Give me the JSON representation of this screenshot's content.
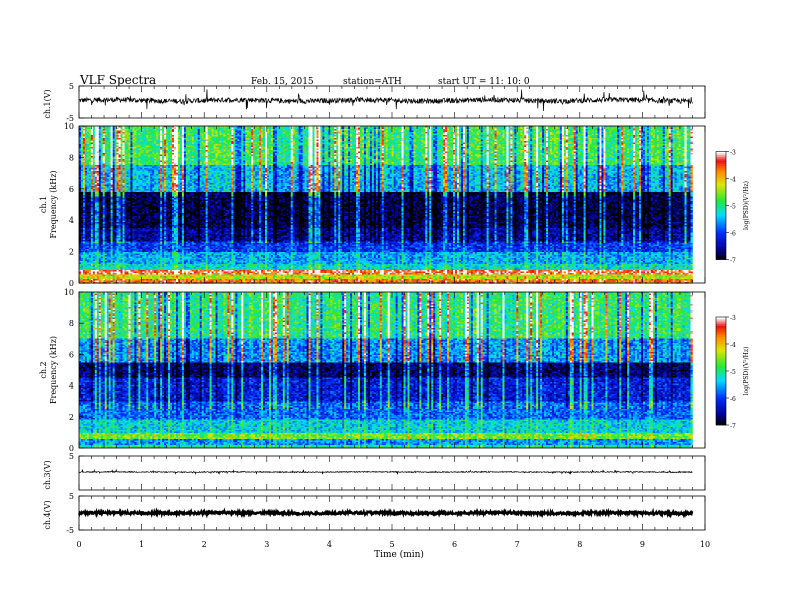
{
  "header": {
    "title": "VLF  Spectra",
    "date": "Feb. 15, 2015",
    "station": "station=ATH",
    "start": "start  UT  =   11: 10: 0"
  },
  "chart_data": [
    {
      "type": "line",
      "ylabel": "ch.1(V)",
      "ylim": [
        -5,
        5
      ],
      "y_ticks": [
        "5",
        "-5"
      ],
      "waveform": {
        "baseline": 0.5,
        "amplitude": 0.8,
        "spike_amplitude": 3
      }
    },
    {
      "type": "heatmap",
      "ylabel_channel": "ch.1",
      "ylabel": "Frequency  (kHz)",
      "ylim": [
        0,
        10
      ],
      "y_ticks": [
        "0",
        "2",
        "4",
        "6",
        "8",
        "10"
      ],
      "colorbar": {
        "label": "log(PSD)(V²/Hz)",
        "range": [
          -7,
          -3
        ],
        "ticks": [
          "-3",
          "-4",
          "-5",
          "-6",
          "-7"
        ]
      },
      "bands_khz": [
        {
          "from": 0.0,
          "to": 0.3,
          "level": -3.6
        },
        {
          "from": 0.3,
          "to": 0.5,
          "level": -4.3
        },
        {
          "from": 0.5,
          "to": 0.8,
          "level": -3.3
        },
        {
          "from": 0.8,
          "to": 1.2,
          "level": -5.2
        },
        {
          "from": 1.2,
          "to": 2.0,
          "level": -5.5
        },
        {
          "from": 2.0,
          "to": 2.6,
          "level": -6.0
        },
        {
          "from": 2.6,
          "to": 3.5,
          "level": -6.5
        },
        {
          "from": 3.5,
          "to": 5.8,
          "level": -6.8
        },
        {
          "from": 5.8,
          "to": 7.5,
          "level": -5.4
        },
        {
          "from": 7.5,
          "to": 10.0,
          "level": -4.8
        }
      ]
    },
    {
      "type": "heatmap",
      "ylabel_channel": "ch.2",
      "ylabel": "Frequency  (kHz)",
      "ylim": [
        0,
        10
      ],
      "y_ticks": [
        "0",
        "2",
        "4",
        "6",
        "8",
        "10"
      ],
      "colorbar": {
        "label": "log(PSD)(V²/Hz)",
        "range": [
          -7,
          -3
        ],
        "ticks": [
          "-3",
          "-4",
          "-5",
          "-6",
          "-7"
        ]
      },
      "bands_khz": [
        {
          "from": 0.0,
          "to": 0.2,
          "level": -5.0
        },
        {
          "from": 0.2,
          "to": 0.6,
          "level": -5.6
        },
        {
          "from": 0.6,
          "to": 1.0,
          "level": -4.6
        },
        {
          "from": 1.0,
          "to": 1.8,
          "level": -5.3
        },
        {
          "from": 1.8,
          "to": 3.0,
          "level": -5.8
        },
        {
          "from": 3.0,
          "to": 4.5,
          "level": -6.2
        },
        {
          "from": 4.5,
          "to": 5.5,
          "level": -6.7
        },
        {
          "from": 5.5,
          "to": 7.0,
          "level": -5.6
        },
        {
          "from": 7.0,
          "to": 10.0,
          "level": -4.9
        }
      ]
    },
    {
      "type": "line",
      "ylabel": "ch.3(V)",
      "ylim": [
        -5,
        5
      ],
      "y_ticks": [
        "5"
      ],
      "waveform": {
        "baseline": 0.3,
        "amplitude": 0.15,
        "spike_amplitude": 0.6
      }
    },
    {
      "type": "line",
      "ylabel": "ch.4(V)",
      "ylim": [
        -5,
        5
      ],
      "y_ticks": [
        "5",
        "-5"
      ],
      "waveform": {
        "baseline": 0,
        "amplitude": 0.35,
        "spike_amplitude": 0.4
      }
    }
  ],
  "x_axis": {
    "label": "Time  (min)",
    "xlim": [
      0,
      10
    ],
    "data_end": 9.8,
    "ticks": [
      "0",
      "1",
      "2",
      "3",
      "4",
      "5",
      "6",
      "7",
      "8",
      "9",
      "10"
    ]
  }
}
